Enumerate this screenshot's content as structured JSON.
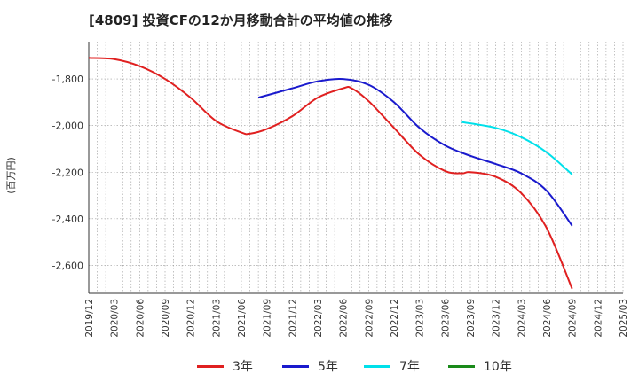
{
  "title": "[4809]  投資CFの12か月移動合計の平均値の推移",
  "y_unit": "(百万円)",
  "chart_data": {
    "type": "line",
    "title": "[4809]  投資CFの12か月移動合計の平均値の推移",
    "ylabel": "(百万円)",
    "xlabel": "",
    "ylim": [
      -2720,
      -1640
    ],
    "yticks": [
      -1800,
      -2000,
      -2200,
      -2400,
      -2600
    ],
    "x_ticks": [
      "2019/12",
      "2020/03",
      "2020/06",
      "2020/09",
      "2020/12",
      "2021/03",
      "2021/06",
      "2021/09",
      "2021/12",
      "2022/03",
      "2022/06",
      "2022/09",
      "2022/12",
      "2023/03",
      "2023/06",
      "2023/09",
      "2023/12",
      "2024/03",
      "2024/06",
      "2024/09",
      "2024/12",
      "2025/03"
    ],
    "grid": true,
    "legend_position": "bottom",
    "series": [
      {
        "name": "3年",
        "color": "#e02020",
        "x": [
          "2019/12",
          "2020/03",
          "2020/06",
          "2020/09",
          "2020/12",
          "2021/03",
          "2021/06",
          "2021/07",
          "2021/09",
          "2021/12",
          "2022/03",
          "2022/06",
          "2022/07",
          "2022/09",
          "2022/12",
          "2023/03",
          "2023/06",
          "2023/08",
          "2023/09",
          "2023/12",
          "2024/03",
          "2024/06",
          "2024/09"
        ],
        "y": [
          -1710,
          -1715,
          -1745,
          -1800,
          -1880,
          -1980,
          -2030,
          -2035,
          -2015,
          -1960,
          -1880,
          -1840,
          -1840,
          -1895,
          -2010,
          -2125,
          -2195,
          -2205,
          -2200,
          -2220,
          -2290,
          -2440,
          -2700
        ]
      },
      {
        "name": "5年",
        "color": "#1a1acd",
        "x": [
          "2021/08",
          "2021/12",
          "2022/03",
          "2022/06",
          "2022/09",
          "2022/12",
          "2023/03",
          "2023/06",
          "2023/09",
          "2023/12",
          "2024/03",
          "2024/06",
          "2024/09"
        ],
        "y": [
          -1880,
          -1840,
          -1810,
          -1800,
          -1825,
          -1900,
          -2010,
          -2085,
          -2130,
          -2165,
          -2205,
          -2280,
          -2430
        ]
      },
      {
        "name": "7年",
        "color": "#00e0ea",
        "x": [
          "2023/08",
          "2023/12",
          "2024/03",
          "2024/06",
          "2024/09"
        ],
        "y": [
          -1985,
          -2010,
          -2050,
          -2115,
          -2210
        ]
      },
      {
        "name": "10年",
        "color": "#1a8a1a",
        "x": [],
        "y": []
      }
    ]
  }
}
